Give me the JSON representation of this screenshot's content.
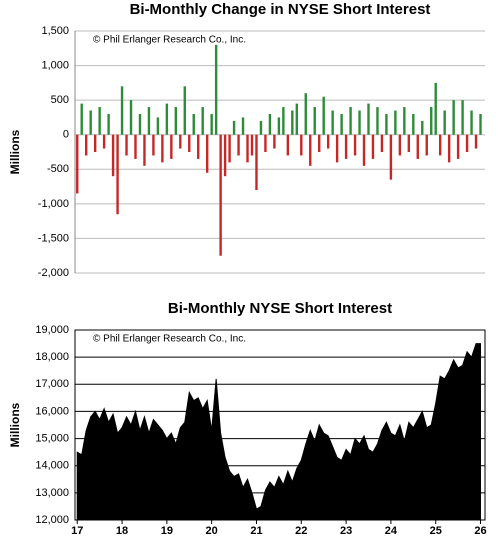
{
  "chart_data": [
    {
      "type": "bar",
      "title": "Bi-Monthly Change in NYSE Short Interest",
      "y_label": "Millions",
      "annotation": "© Phil Erlanger Research Co., Inc.",
      "positive_color": "#2e8b3a",
      "negative_color": "#c62828",
      "grid": true,
      "xlim": [
        16.95,
        26.1
      ],
      "ylim": [
        -2000,
        1500
      ],
      "yticks": [
        {
          "value": -2000,
          "label": "-2,000"
        },
        {
          "value": -1500,
          "label": "-1,500"
        },
        {
          "value": -1000,
          "label": "-1,000"
        },
        {
          "value": -500,
          "label": "-500"
        },
        0,
        500,
        {
          "value": 1000,
          "label": "1,000"
        },
        {
          "value": 1500,
          "label": "1,500"
        }
      ],
      "x": [
        17.0,
        17.1,
        17.2,
        17.3,
        17.4,
        17.5,
        17.6,
        17.7,
        17.8,
        17.9,
        18.0,
        18.1,
        18.2,
        18.3,
        18.4,
        18.5,
        18.6,
        18.7,
        18.8,
        18.9,
        19.0,
        19.1,
        19.2,
        19.3,
        19.4,
        19.5,
        19.6,
        19.7,
        19.8,
        19.9,
        20.0,
        20.1,
        20.2,
        20.3,
        20.4,
        20.5,
        20.6,
        20.7,
        20.8,
        20.9,
        21.0,
        21.1,
        21.2,
        21.3,
        21.4,
        21.5,
        21.6,
        21.7,
        21.8,
        21.9,
        22.0,
        22.1,
        22.2,
        22.3,
        22.4,
        22.5,
        22.6,
        22.7,
        22.8,
        22.9,
        23.0,
        23.1,
        23.2,
        23.3,
        23.4,
        23.5,
        23.6,
        23.7,
        23.8,
        23.9,
        24.0,
        24.1,
        24.2,
        24.3,
        24.4,
        24.5,
        24.6,
        24.7,
        24.8,
        24.9,
        25.0,
        25.1,
        25.2,
        25.3,
        25.4,
        25.5,
        25.6,
        25.7,
        25.8,
        25.9,
        26.0
      ],
      "values": [
        -850,
        450,
        -300,
        350,
        -250,
        400,
        -200,
        300,
        -600,
        -1150,
        700,
        -300,
        500,
        -350,
        300,
        -450,
        400,
        -300,
        250,
        -400,
        450,
        -350,
        400,
        -200,
        700,
        -250,
        300,
        -350,
        400,
        -550,
        300,
        1300,
        -1750,
        -600,
        -400,
        200,
        -300,
        250,
        -400,
        -300,
        -800,
        200,
        -250,
        300,
        -200,
        250,
        400,
        -300,
        350,
        450,
        -300,
        600,
        -450,
        400,
        -250,
        550,
        -200,
        350,
        -400,
        300,
        -350,
        400,
        -300,
        350,
        -450,
        450,
        -350,
        400,
        -250,
        300,
        -650,
        350,
        -300,
        400,
        -250,
        300,
        -350,
        200,
        -300,
        400,
        750,
        -300,
        350,
        -400,
        500,
        -350,
        500,
        -250,
        350,
        -200,
        300
      ]
    },
    {
      "type": "area",
      "title": "Bi-Monthly NYSE Short Interest",
      "y_label": "Millions",
      "annotation": "© Phil Erlanger Research Co., Inc.",
      "color": "#000000",
      "grid": true,
      "xlim": [
        16.95,
        26.1
      ],
      "xticks": [
        17,
        18,
        19,
        20,
        21,
        22,
        23,
        24,
        25,
        26
      ],
      "ylim": [
        12000,
        19000
      ],
      "yticks": [
        {
          "value": 12000,
          "label": "12,000"
        },
        {
          "value": 13000,
          "label": "13,000"
        },
        {
          "value": 14000,
          "label": "14,000"
        },
        {
          "value": 15000,
          "label": "15,000"
        },
        {
          "value": 16000,
          "label": "16,000"
        },
        {
          "value": 17000,
          "label": "17,000"
        },
        {
          "value": 18000,
          "label": "18,000"
        },
        {
          "value": 19000,
          "label": "19,000"
        }
      ],
      "x": [
        17.0,
        17.1,
        17.2,
        17.3,
        17.4,
        17.5,
        17.6,
        17.7,
        17.8,
        17.9,
        18.0,
        18.1,
        18.2,
        18.3,
        18.4,
        18.5,
        18.6,
        18.7,
        18.8,
        18.9,
        19.0,
        19.1,
        19.2,
        19.3,
        19.4,
        19.5,
        19.6,
        19.7,
        19.8,
        19.9,
        20.0,
        20.1,
        20.2,
        20.3,
        20.4,
        20.5,
        20.6,
        20.7,
        20.8,
        20.9,
        21.0,
        21.1,
        21.2,
        21.3,
        21.4,
        21.5,
        21.6,
        21.7,
        21.8,
        21.9,
        22.0,
        22.1,
        22.2,
        22.3,
        22.4,
        22.5,
        22.6,
        22.7,
        22.8,
        22.9,
        23.0,
        23.1,
        23.2,
        23.3,
        23.4,
        23.5,
        23.6,
        23.7,
        23.8,
        23.9,
        24.0,
        24.1,
        24.2,
        24.3,
        24.4,
        24.5,
        24.6,
        24.7,
        24.8,
        24.9,
        25.0,
        25.1,
        25.2,
        25.3,
        25.4,
        25.5,
        25.6,
        25.7,
        25.8,
        25.9,
        26.0
      ],
      "values": [
        14500,
        14400,
        15300,
        15800,
        16000,
        15700,
        16100,
        15600,
        15900,
        15200,
        15400,
        15800,
        15500,
        16000,
        15300,
        15800,
        15200,
        15700,
        15500,
        15300,
        15000,
        15200,
        14800,
        15400,
        15600,
        16700,
        16400,
        16500,
        16100,
        16400,
        15300,
        17200,
        15200,
        14300,
        13800,
        13600,
        13700,
        13200,
        13500,
        13000,
        12400,
        12500,
        13100,
        13400,
        13200,
        13600,
        13300,
        13800,
        13400,
        13900,
        14200,
        14800,
        15300,
        14900,
        15500,
        15200,
        15100,
        14700,
        14300,
        14200,
        14600,
        14400,
        15000,
        14800,
        15100,
        14600,
        14500,
        14800,
        15300,
        15600,
        15200,
        15100,
        15500,
        14900,
        15600,
        15400,
        15700,
        16000,
        15400,
        15500,
        16300,
        17300,
        17200,
        17500,
        17900,
        17600,
        17700,
        18200,
        18000,
        18500,
        18500
      ]
    }
  ]
}
